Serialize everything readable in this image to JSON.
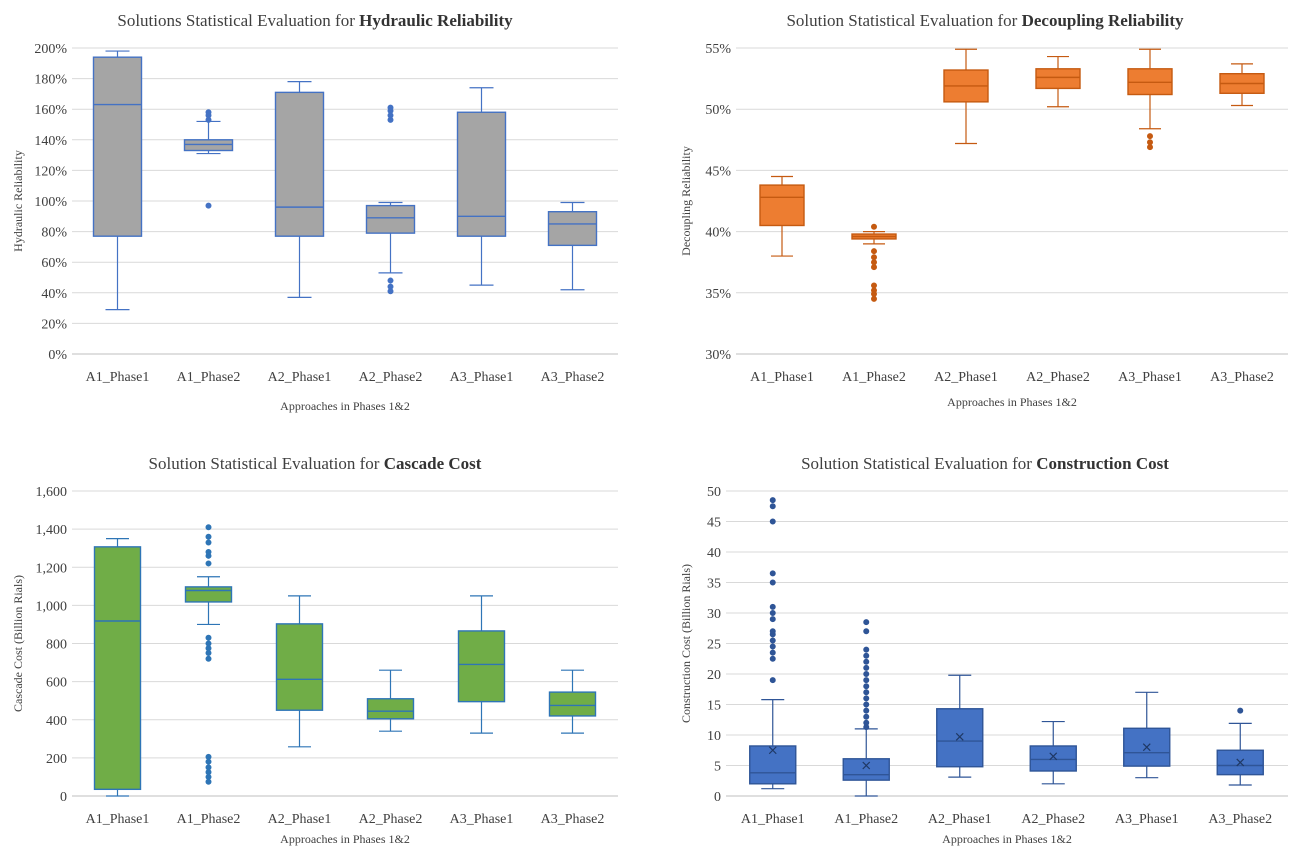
{
  "chart_data": [
    {
      "type": "box",
      "title_prefix": "Solutions Statistical Evaluation for ",
      "title_bold": "Hydraulic Reliability",
      "xlabel": "Approaches in Phases 1&2",
      "ylabel": "Hydraulic Reliability",
      "ylim": [
        0,
        200
      ],
      "yticks": [
        0,
        20,
        40,
        60,
        80,
        100,
        120,
        140,
        160,
        180,
        200
      ],
      "ytick_labels": [
        "0%",
        "20%",
        "40%",
        "60%",
        "80%",
        "100%",
        "120%",
        "140%",
        "160%",
        "180%",
        "200%"
      ],
      "categories": [
        "A1_Phase1",
        "A1_Phase2",
        "A2_Phase1",
        "A2_Phase2",
        "A3_Phase1",
        "A3_Phase2"
      ],
      "fill_color": "#a5a5a5",
      "stroke_color": "#4472c4",
      "mean_marker": false,
      "boxes": [
        {
          "min": 29,
          "q1": 77,
          "median": 163,
          "q3": 194,
          "max": 198,
          "mean": null,
          "outliers": []
        },
        {
          "min": 131,
          "q1": 133,
          "median": 137,
          "q3": 140,
          "max": 152,
          "mean": null,
          "outliers": [
            97,
            153,
            156,
            158
          ]
        },
        {
          "min": 37,
          "q1": 77,
          "median": 96,
          "q3": 171,
          "max": 178,
          "mean": null,
          "outliers": []
        },
        {
          "min": 53,
          "q1": 79,
          "median": 89,
          "q3": 97,
          "max": 99,
          "mean": null,
          "outliers": [
            41,
            44,
            48,
            153,
            156,
            159,
            161
          ]
        },
        {
          "min": 45,
          "q1": 77,
          "median": 90,
          "q3": 158,
          "max": 174,
          "mean": null,
          "outliers": []
        },
        {
          "min": 42,
          "q1": 71,
          "median": 85,
          "q3": 93,
          "max": 99,
          "mean": null,
          "outliers": []
        }
      ]
    },
    {
      "type": "box",
      "title_prefix": "Solution Statistical Evaluation for ",
      "title_bold": "Decoupling Reliability",
      "xlabel": "Approaches in Phases 1&2",
      "ylabel": "Decoupling Reliability",
      "ylim": [
        30,
        55
      ],
      "yticks": [
        30,
        35,
        40,
        45,
        50,
        55
      ],
      "ytick_labels": [
        "30%",
        "35%",
        "40%",
        "45%",
        "50%",
        "55%"
      ],
      "categories": [
        "A1_Phase1",
        "A1_Phase2",
        "A2_Phase1",
        "A2_Phase2",
        "A3_Phase1",
        "A3_Phase2"
      ],
      "fill_color": "#ed7d31",
      "stroke_color": "#c55a11",
      "mean_marker": false,
      "boxes": [
        {
          "min": 38.0,
          "q1": 40.5,
          "median": 42.8,
          "q3": 43.8,
          "max": 44.5,
          "mean": null,
          "outliers": []
        },
        {
          "min": 39.0,
          "q1": 39.4,
          "median": 39.6,
          "q3": 39.8,
          "max": 40.0,
          "mean": null,
          "outliers": [
            34.5,
            34.9,
            35.2,
            35.6,
            37.1,
            37.5,
            37.9,
            38.4,
            40.4
          ]
        },
        {
          "min": 47.2,
          "q1": 50.6,
          "median": 51.9,
          "q3": 53.2,
          "max": 54.9,
          "mean": null,
          "outliers": []
        },
        {
          "min": 50.2,
          "q1": 51.7,
          "median": 52.6,
          "q3": 53.3,
          "max": 54.3,
          "mean": null,
          "outliers": []
        },
        {
          "min": 48.4,
          "q1": 51.2,
          "median": 52.2,
          "q3": 53.3,
          "max": 54.9,
          "mean": null,
          "outliers": [
            46.9,
            47.3,
            47.8
          ]
        },
        {
          "min": 50.3,
          "q1": 51.3,
          "median": 52.1,
          "q3": 52.9,
          "max": 53.7,
          "mean": null,
          "outliers": []
        }
      ]
    },
    {
      "type": "box",
      "title_prefix": "Solution Statistical Evaluation for ",
      "title_bold": "Cascade Cost",
      "xlabel": "Approaches in Phases 1&2",
      "ylabel": "Cascade Cost (Billion Rials)",
      "ylim": [
        0,
        1600
      ],
      "yticks": [
        0,
        200,
        400,
        600,
        800,
        1000,
        1200,
        1400,
        1600
      ],
      "ytick_labels": [
        "0",
        "200",
        "400",
        "600",
        "800",
        "1,000",
        "1,200",
        "1,400",
        "1,600"
      ],
      "categories": [
        "A1_Phase1",
        "A1_Phase2",
        "A2_Phase1",
        "A2_Phase2",
        "A3_Phase1",
        "A3_Phase2"
      ],
      "fill_color": "#70ad47",
      "stroke_color": "#2e75b6",
      "mean_marker": false,
      "boxes": [
        {
          "min": 0,
          "q1": 35,
          "median": 918,
          "q3": 1307,
          "max": 1350,
          "mean": null,
          "outliers": []
        },
        {
          "min": 900,
          "q1": 1018,
          "median": 1078,
          "q3": 1097,
          "max": 1150,
          "mean": null,
          "outliers": [
            75,
            100,
            125,
            150,
            180,
            205,
            720,
            750,
            775,
            800,
            830,
            1220,
            1260,
            1280,
            1330,
            1360,
            1410
          ]
        },
        {
          "min": 258,
          "q1": 450,
          "median": 612,
          "q3": 903,
          "max": 1050,
          "mean": null,
          "outliers": []
        },
        {
          "min": 340,
          "q1": 405,
          "median": 445,
          "q3": 510,
          "max": 660,
          "mean": null,
          "outliers": []
        },
        {
          "min": 330,
          "q1": 495,
          "median": 690,
          "q3": 866,
          "max": 1050,
          "mean": null,
          "outliers": []
        },
        {
          "min": 330,
          "q1": 420,
          "median": 475,
          "q3": 545,
          "max": 660,
          "mean": null,
          "outliers": []
        }
      ]
    },
    {
      "type": "box",
      "title_prefix": "Solution Statistical Evaluation for ",
      "title_bold": "Construction Cost",
      "xlabel": "Approaches in Phases 1&2",
      "ylabel": "Construction Cost (Billion Rials)",
      "ylim": [
        0,
        50
      ],
      "yticks": [
        0,
        5,
        10,
        15,
        20,
        25,
        30,
        35,
        40,
        45,
        50
      ],
      "ytick_labels": [
        "0",
        "5",
        "10",
        "15",
        "20",
        "25",
        "30",
        "35",
        "40",
        "45",
        "50"
      ],
      "categories": [
        "A1_Phase1",
        "A1_Phase2",
        "A2_Phase1",
        "A2_Phase2",
        "A3_Phase1",
        "A3_Phase2"
      ],
      "fill_color": "#4472c4",
      "stroke_color": "#2f5597",
      "mean_marker": true,
      "boxes": [
        {
          "min": 1.2,
          "q1": 2.0,
          "median": 3.8,
          "q3": 8.2,
          "max": 15.8,
          "mean": 7.5,
          "outliers": [
            19,
            22.5,
            23.5,
            24.5,
            25.5,
            26.5,
            27,
            29,
            30,
            31,
            35,
            36.5,
            45,
            47.5,
            48.5
          ]
        },
        {
          "min": 0,
          "q1": 2.6,
          "median": 3.5,
          "q3": 6.1,
          "max": 11.0,
          "mean": 5.0,
          "outliers": [
            11.3,
            12,
            13,
            14,
            15,
            16,
            17,
            18,
            19,
            20,
            21,
            22,
            23,
            24,
            27,
            28.5
          ]
        },
        {
          "min": 3.1,
          "q1": 4.8,
          "median": 9.0,
          "q3": 14.3,
          "max": 19.8,
          "mean": 9.7,
          "outliers": []
        },
        {
          "min": 2.0,
          "q1": 4.1,
          "median": 6.0,
          "q3": 8.2,
          "max": 12.2,
          "mean": 6.5,
          "outliers": []
        },
        {
          "min": 3.0,
          "q1": 4.9,
          "median": 7.1,
          "q3": 11.1,
          "max": 17.0,
          "mean": 8.0,
          "outliers": []
        },
        {
          "min": 1.8,
          "q1": 3.5,
          "median": 5.0,
          "q3": 7.5,
          "max": 11.9,
          "mean": 5.5,
          "outliers": [
            14.0
          ]
        }
      ]
    }
  ]
}
